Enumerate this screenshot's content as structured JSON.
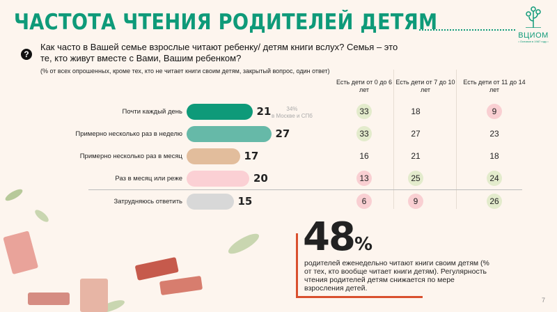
{
  "title": "ЧАСТОТА ЧТЕНИЯ РОДИТЕЛЕЙ ДЕТЯМ",
  "logo": {
    "name": "ВЦИОМ",
    "tagline": "• Основан в 1987 году •"
  },
  "question": "Как часто в Вашей семье взрослые читают ребенку/ детям книги вслух? Семья – это те, кто живут вместе с Вами, Вашим ребенком?",
  "question_note": "(% от всех опрошенных, кроме тех, кто не читает книги своим детям, закрытый вопрос, один ответ)",
  "columns": [
    "Есть дети от 0 до 6 лет",
    "Есть дети от 7 до 10 лет",
    "Есть дети от 11 до 14 лет"
  ],
  "side_note": "34%\nв Москве и СПб",
  "chart_data": {
    "type": "bar",
    "categories": [
      "Почти каждый день",
      "Примерно несколько раз в неделю",
      "Примерно несколько раз в месяц",
      "Раз в месяц или реже",
      "Затрудняюсь ответить"
    ],
    "values": [
      21,
      27,
      17,
      20,
      15
    ],
    "colors": [
      "#0e9a79",
      "#66b9a8",
      "#e2bd9c",
      "#fbd0d4",
      "#d8d8d8"
    ]
  },
  "rows": [
    {
      "cells": [
        {
          "v": "33",
          "h": "g"
        },
        {
          "v": "18",
          "h": ""
        },
        {
          "v": "9",
          "h": "p"
        }
      ]
    },
    {
      "cells": [
        {
          "v": "33",
          "h": "g"
        },
        {
          "v": "27",
          "h": ""
        },
        {
          "v": "23",
          "h": ""
        }
      ]
    },
    {
      "cells": [
        {
          "v": "16",
          "h": ""
        },
        {
          "v": "21",
          "h": ""
        },
        {
          "v": "18",
          "h": ""
        }
      ]
    },
    {
      "cells": [
        {
          "v": "13",
          "h": "p"
        },
        {
          "v": "25",
          "h": "g"
        },
        {
          "v": "24",
          "h": "g"
        }
      ]
    },
    {
      "cells": [
        {
          "v": "6",
          "h": "p"
        },
        {
          "v": "9",
          "h": "p"
        },
        {
          "v": "26",
          "h": "g"
        }
      ]
    }
  ],
  "highlight": {
    "value": "48",
    "unit": "%",
    "text": "родителей еженедельно читают книги своим детям (% от тех, кто вообще читает книги детям). Регулярность чтения родителей детям снижается по мере взросления детей."
  },
  "page": "7"
}
